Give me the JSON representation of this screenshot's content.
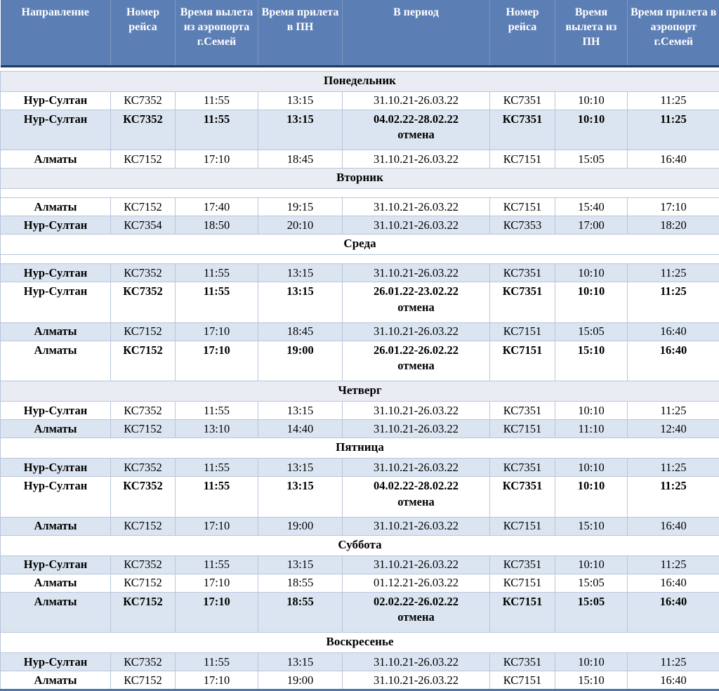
{
  "colors": {
    "header_bg": "#5b7eb5",
    "header_text": "#ffffff",
    "row_tint": "#dbe5f1",
    "band_tint": "#e9edf3",
    "grid_line": "#b9c6da",
    "header_rule": "#1f3864",
    "bottom_rule": "#4a76ae",
    "text": "#000000"
  },
  "table": {
    "columns": [
      "Направление",
      "Номер рейса",
      "Время вылета из аэропорта г.Семей",
      "Время прилета в ПН",
      "В период",
      "Номер рейса",
      "Время вылета из ПН",
      "Время прилета в аэропорт г.Семей"
    ],
    "sections": [
      {
        "day": "Понедельник",
        "band_tinted": true,
        "spacer_after": false,
        "rows": [
          {
            "cells": [
              "Нур-Султан",
              "КС7352",
              "11:55",
              "13:15",
              "31.10.21-26.03.22",
              "КС7351",
              "10:10",
              "11:25"
            ],
            "tint": false,
            "bold": false,
            "note": ""
          },
          {
            "cells": [
              "Нур-Султан",
              "КС7352",
              "11:55",
              "13:15",
              "04.02.22-28.02.22",
              "КС7351",
              "10:10",
              "11:25"
            ],
            "tint": true,
            "bold": true,
            "note": "отмена"
          },
          {
            "cells": [
              "Алматы",
              "КС7152",
              "17:10",
              "18:45",
              "31.10.21-26.03.22",
              "КС7151",
              "15:05",
              "16:40"
            ],
            "tint": false,
            "bold": false,
            "note": ""
          }
        ]
      },
      {
        "day": "Вторник",
        "band_tinted": true,
        "spacer_after": true,
        "rows": [
          {
            "cells": [
              "Алматы",
              "КС7152",
              "17:40",
              "19:15",
              "31.10.21-26.03.22",
              "КС7151",
              "15:40",
              "17:10"
            ],
            "tint": false,
            "bold": false,
            "note": ""
          },
          {
            "cells": [
              "Нур-Султан",
              "КС7354",
              "18:50",
              "20:10",
              "31.10.21-26.03.22",
              "КС7353",
              "17:00",
              "18:20"
            ],
            "tint": true,
            "bold": false,
            "note": ""
          }
        ]
      },
      {
        "day": "Среда",
        "band_tinted": false,
        "spacer_after": true,
        "rows": [
          {
            "cells": [
              "Нур-Султан",
              "КС7352",
              "11:55",
              "13:15",
              "31.10.21-26.03.22",
              "КС7351",
              "10:10",
              "11:25"
            ],
            "tint": true,
            "bold": false,
            "note": ""
          },
          {
            "cells": [
              "Нур-Султан",
              "КС7352",
              "11:55",
              "13:15",
              "26.01.22-23.02.22",
              "КС7351",
              "10:10",
              "11:25"
            ],
            "tint": false,
            "bold": true,
            "note": "отмена"
          },
          {
            "cells": [
              "Алматы",
              "КС7152",
              "17:10",
              "18:45",
              "31.10.21-26.03.22",
              "КС7151",
              "15:05",
              "16:40"
            ],
            "tint": true,
            "bold": false,
            "note": ""
          },
          {
            "cells": [
              "Алматы",
              "КС7152",
              "17:10",
              "19:00",
              "26.01.22-26.02.22",
              "КС7151",
              "15:10",
              "16:40"
            ],
            "tint": false,
            "bold": true,
            "note": "отмена"
          }
        ]
      },
      {
        "day": "Четверг",
        "band_tinted": true,
        "spacer_after": false,
        "rows": [
          {
            "cells": [
              "Нур-Султан",
              "КС7352",
              "11:55",
              "13:15",
              "31.10.21-26.03.22",
              "КС7351",
              "10:10",
              "11:25"
            ],
            "tint": false,
            "bold": false,
            "note": ""
          },
          {
            "cells": [
              "Алматы",
              "КС7152",
              "13:10",
              "14:40",
              "31.10.21-26.03.22",
              "КС7151",
              "11:10",
              "12:40"
            ],
            "tint": true,
            "bold": false,
            "note": ""
          }
        ]
      },
      {
        "day": "Пятница",
        "band_tinted": false,
        "spacer_after": false,
        "rows": [
          {
            "cells": [
              "Нур-Султан",
              "КС7352",
              "11:55",
              "13:15",
              "31.10.21-26.03.22",
              "КС7351",
              "10:10",
              "11:25"
            ],
            "tint": true,
            "bold": false,
            "note": ""
          },
          {
            "cells": [
              "Нур-Султан",
              "КС7352",
              "11:55",
              "13:15",
              "04.02.22-28.02.22",
              "КС7351",
              "10:10",
              "11:25"
            ],
            "tint": false,
            "bold": true,
            "note": "отмена"
          },
          {
            "cells": [
              "Алматы",
              "КС7152",
              "17:10",
              "19:00",
              "31.10.21-26.03.22",
              "КС7151",
              "15:10",
              "16:40"
            ],
            "tint": true,
            "bold": false,
            "note": ""
          }
        ]
      },
      {
        "day": "Суббота",
        "band_tinted": false,
        "spacer_after": false,
        "rows": [
          {
            "cells": [
              "Нур-Султан",
              "КС7352",
              "11:55",
              "13:15",
              "31.10.21-26.03.22",
              "КС7351",
              "10:10",
              "11:25"
            ],
            "tint": true,
            "bold": false,
            "note": ""
          },
          {
            "cells": [
              "Алматы",
              "КС7152",
              "17:10",
              "18:55",
              "01.12.21-26.03.22",
              "КС7151",
              "15:05",
              "16:40"
            ],
            "tint": false,
            "bold": false,
            "note": ""
          },
          {
            "cells": [
              "Алматы",
              "КС7152",
              "17:10",
              "18:55",
              "02.02.22-26.02.22",
              "КС7151",
              "15:05",
              "16:40"
            ],
            "tint": true,
            "bold": true,
            "note": "отмена"
          }
        ]
      },
      {
        "day": "Воскресенье",
        "band_tinted": false,
        "spacer_after": false,
        "rows": [
          {
            "cells": [
              "Нур-Султан",
              "КС7352",
              "11:55",
              "13:15",
              "31.10.21-26.03.22",
              "КС7351",
              "10:10",
              "11:25"
            ],
            "tint": true,
            "bold": false,
            "note": ""
          },
          {
            "cells": [
              "Алматы",
              "КС7152",
              "17:10",
              "19:00",
              "31.10.21-26.03.22",
              "КС7151",
              "15:10",
              "16:40"
            ],
            "tint": false,
            "bold": false,
            "note": ""
          }
        ]
      }
    ]
  }
}
